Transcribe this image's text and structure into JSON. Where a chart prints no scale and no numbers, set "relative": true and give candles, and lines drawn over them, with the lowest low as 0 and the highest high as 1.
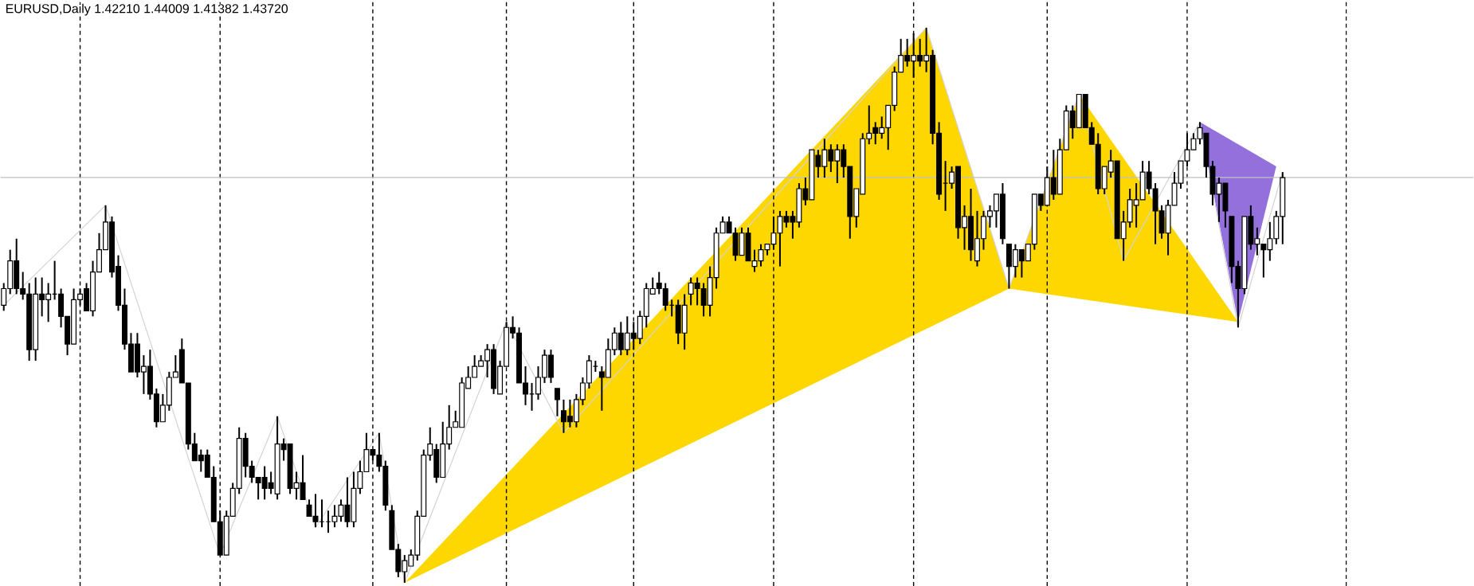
{
  "chart_data": {
    "type": "candlestick",
    "title": "EURUSD,Daily  1.42210 1.44009 1.41382 1.43720",
    "relative": true,
    "categories": [
      null,
      null,
      null,
      null,
      null,
      null,
      null,
      null,
      null,
      null,
      null,
      null,
      null,
      null,
      null,
      null,
      null,
      null,
      null,
      null,
      null,
      null,
      null,
      null,
      null,
      null,
      null,
      null,
      null,
      null,
      null,
      null,
      null,
      null,
      null,
      null,
      null,
      null,
      null,
      null,
      null,
      null,
      null,
      null,
      null,
      null,
      null,
      null,
      null,
      null,
      null,
      null,
      null,
      null,
      null,
      null,
      null,
      null,
      null,
      null,
      null,
      null,
      null,
      null,
      null,
      null,
      null,
      null,
      null,
      null,
      null,
      null,
      null,
      null,
      null,
      null,
      null,
      null,
      null,
      null,
      null,
      null,
      null,
      null,
      null,
      null,
      null,
      null,
      null,
      null,
      null,
      null,
      null,
      null,
      null,
      null,
      null,
      null,
      null,
      null,
      null,
      null,
      null,
      null,
      null,
      null,
      null,
      null,
      null,
      null,
      null,
      null,
      null,
      null,
      null,
      null,
      null,
      null,
      null,
      null,
      null,
      null,
      null,
      null,
      null,
      null,
      null,
      null,
      null,
      null,
      null,
      null,
      null,
      null,
      null,
      null,
      null,
      null,
      null,
      null,
      null,
      null,
      null,
      null,
      null,
      null,
      null,
      null,
      null,
      null,
      null,
      null,
      null,
      null,
      null,
      null,
      null,
      null,
      null,
      null,
      null,
      null,
      null,
      null,
      null,
      null,
      null,
      null,
      null,
      null,
      null,
      null,
      null,
      null,
      null,
      null,
      null,
      null,
      null,
      null,
      null,
      null,
      null,
      null,
      null,
      null,
      null,
      null,
      null,
      null,
      null,
      null,
      null,
      null,
      null,
      null,
      null,
      null,
      null,
      null,
      null,
      null
    ],
    "ohlc": [
      [
        0.5,
        0.54,
        0.49,
        0.53
      ],
      [
        0.53,
        0.6,
        0.52,
        0.58
      ],
      [
        0.58,
        0.62,
        0.52,
        0.53
      ],
      [
        0.53,
        0.56,
        0.51,
        0.52
      ],
      [
        0.52,
        0.54,
        0.4,
        0.42
      ],
      [
        0.42,
        0.55,
        0.4,
        0.52
      ],
      [
        0.52,
        0.55,
        0.48,
        0.51
      ],
      [
        0.51,
        0.54,
        0.47,
        0.52
      ],
      [
        0.52,
        0.58,
        0.51,
        0.52
      ],
      [
        0.52,
        0.53,
        0.46,
        0.48
      ],
      [
        0.48,
        0.48,
        0.41,
        0.43
      ],
      [
        0.43,
        0.53,
        0.43,
        0.51
      ],
      [
        0.51,
        0.53,
        0.5,
        0.52
      ],
      [
        0.53,
        0.54,
        0.49,
        0.49
      ],
      [
        0.49,
        0.58,
        0.48,
        0.56
      ],
      [
        0.56,
        0.63,
        0.56,
        0.6
      ],
      [
        0.6,
        0.68,
        0.6,
        0.65
      ],
      [
        0.65,
        0.66,
        0.55,
        0.56
      ],
      [
        0.57,
        0.59,
        0.49,
        0.5
      ],
      [
        0.5,
        0.53,
        0.42,
        0.43
      ],
      [
        0.43,
        0.45,
        0.38,
        0.38
      ],
      [
        0.43,
        0.45,
        0.37,
        0.38
      ],
      [
        0.38,
        0.41,
        0.34,
        0.39
      ],
      [
        0.39,
        0.42,
        0.33,
        0.34
      ],
      [
        0.34,
        0.35,
        0.28,
        0.29
      ],
      [
        0.29,
        0.34,
        0.29,
        0.32
      ],
      [
        0.32,
        0.38,
        0.31,
        0.37
      ],
      [
        0.37,
        0.41,
        0.37,
        0.38
      ],
      [
        0.42,
        0.44,
        0.36,
        0.36
      ],
      [
        0.36,
        0.36,
        0.24,
        0.25
      ],
      [
        0.25,
        0.27,
        0.22,
        0.22
      ],
      [
        0.23,
        0.24,
        0.2,
        0.22
      ],
      [
        0.23,
        0.24,
        0.19,
        0.19
      ],
      [
        0.19,
        0.21,
        0.11,
        0.11
      ],
      [
        0.11,
        0.13,
        0.05,
        0.05
      ],
      [
        0.05,
        0.13,
        0.05,
        0.12
      ],
      [
        0.12,
        0.18,
        0.12,
        0.17
      ],
      [
        0.17,
        0.28,
        0.16,
        0.26
      ],
      [
        0.26,
        0.27,
        0.19,
        0.21
      ],
      [
        0.21,
        0.22,
        0.18,
        0.19
      ],
      [
        0.19,
        0.19,
        0.15,
        0.18
      ],
      [
        0.19,
        0.21,
        0.15,
        0.17
      ],
      [
        0.18,
        0.2,
        0.16,
        0.17
      ],
      [
        0.16,
        0.3,
        0.15,
        0.25
      ],
      [
        0.25,
        0.26,
        0.22,
        0.24
      ],
      [
        0.25,
        0.25,
        0.16,
        0.17
      ],
      [
        0.17,
        0.2,
        0.15,
        0.18
      ],
      [
        0.18,
        0.23,
        0.15,
        0.15
      ],
      [
        0.14,
        0.15,
        0.12,
        0.12
      ],
      [
        0.12,
        0.16,
        0.1,
        0.11
      ],
      [
        0.11,
        0.15,
        0.1,
        0.11
      ],
      [
        0.11,
        0.13,
        0.09,
        0.11
      ],
      [
        0.11,
        0.14,
        0.1,
        0.12
      ],
      [
        0.12,
        0.15,
        0.11,
        0.14
      ],
      [
        0.14,
        0.19,
        0.1,
        0.11
      ],
      [
        0.11,
        0.2,
        0.1,
        0.17
      ],
      [
        0.17,
        0.22,
        0.16,
        0.2
      ],
      [
        0.2,
        0.27,
        0.2,
        0.24
      ],
      [
        0.24,
        0.24,
        0.22,
        0.23
      ],
      [
        0.23,
        0.27,
        0.2,
        0.21
      ],
      [
        0.21,
        0.22,
        0.13,
        0.14
      ],
      [
        0.13,
        0.14,
        0.06,
        0.06
      ],
      [
        0.06,
        0.07,
        0.01,
        0.02
      ],
      [
        0.02,
        0.05,
        0.0,
        0.04
      ],
      [
        0.03,
        0.06,
        0.03,
        0.05
      ],
      [
        0.05,
        0.13,
        0.04,
        0.12
      ],
      [
        0.12,
        0.24,
        0.12,
        0.23
      ],
      [
        0.23,
        0.28,
        0.22,
        0.25
      ],
      [
        0.24,
        0.25,
        0.18,
        0.19
      ],
      [
        0.19,
        0.29,
        0.19,
        0.25
      ],
      [
        0.25,
        0.32,
        0.24,
        0.28
      ],
      [
        0.28,
        0.31,
        0.28,
        0.29
      ],
      [
        0.28,
        0.37,
        0.28,
        0.36
      ],
      [
        0.35,
        0.39,
        0.35,
        0.37
      ],
      [
        0.37,
        0.41,
        0.37,
        0.39
      ],
      [
        0.39,
        0.41,
        0.39,
        0.4
      ],
      [
        0.4,
        0.43,
        0.37,
        0.42
      ],
      [
        0.42,
        0.43,
        0.34,
        0.35
      ],
      [
        0.34,
        0.4,
        0.34,
        0.39
      ],
      [
        0.39,
        0.47,
        0.39,
        0.46
      ],
      [
        0.46,
        0.48,
        0.44,
        0.45
      ],
      [
        0.45,
        0.46,
        0.36,
        0.36
      ],
      [
        0.36,
        0.39,
        0.32,
        0.34
      ],
      [
        0.34,
        0.36,
        0.31,
        0.34
      ],
      [
        0.34,
        0.39,
        0.33,
        0.37
      ],
      [
        0.37,
        0.42,
        0.36,
        0.41
      ],
      [
        0.41,
        0.42,
        0.36,
        0.37
      ],
      [
        0.35,
        0.35,
        0.3,
        0.33
      ],
      [
        0.31,
        0.33,
        0.27,
        0.29
      ],
      [
        0.3,
        0.33,
        0.28,
        0.29
      ],
      [
        0.29,
        0.34,
        0.28,
        0.33
      ],
      [
        0.33,
        0.37,
        0.32,
        0.36
      ],
      [
        0.36,
        0.41,
        0.35,
        0.4
      ],
      [
        0.39,
        0.4,
        0.38,
        0.39
      ],
      [
        0.38,
        0.39,
        0.31,
        0.37
      ],
      [
        0.37,
        0.44,
        0.37,
        0.42
      ],
      [
        0.42,
        0.46,
        0.41,
        0.45
      ],
      [
        0.45,
        0.47,
        0.41,
        0.42
      ],
      [
        0.42,
        0.48,
        0.41,
        0.45
      ],
      [
        0.45,
        0.47,
        0.42,
        0.44
      ],
      [
        0.44,
        0.49,
        0.43,
        0.48
      ],
      [
        0.48,
        0.54,
        0.46,
        0.53
      ],
      [
        0.52,
        0.55,
        0.52,
        0.53
      ],
      [
        0.54,
        0.56,
        0.52,
        0.53
      ],
      [
        0.53,
        0.54,
        0.49,
        0.5
      ],
      [
        0.5,
        0.51,
        0.48,
        0.5
      ],
      [
        0.5,
        0.51,
        0.43,
        0.45
      ],
      [
        0.45,
        0.52,
        0.42,
        0.5
      ],
      [
        0.52,
        0.55,
        0.5,
        0.54
      ],
      [
        0.54,
        0.55,
        0.5,
        0.53
      ],
      [
        0.53,
        0.54,
        0.48,
        0.5
      ],
      [
        0.5,
        0.57,
        0.48,
        0.55
      ],
      [
        0.55,
        0.64,
        0.53,
        0.63
      ],
      [
        0.63,
        0.66,
        0.63,
        0.65
      ],
      [
        0.65,
        0.66,
        0.63,
        0.63
      ],
      [
        0.63,
        0.64,
        0.58,
        0.59
      ],
      [
        0.59,
        0.64,
        0.59,
        0.63
      ],
      [
        0.63,
        0.64,
        0.58,
        0.58
      ],
      [
        0.57,
        0.6,
        0.56,
        0.58
      ],
      [
        0.58,
        0.61,
        0.57,
        0.6
      ],
      [
        0.6,
        0.61,
        0.59,
        0.61
      ],
      [
        0.61,
        0.66,
        0.6,
        0.63
      ],
      [
        0.63,
        0.67,
        0.57,
        0.66
      ],
      [
        0.66,
        0.67,
        0.64,
        0.65
      ],
      [
        0.66,
        0.67,
        0.62,
        0.65
      ],
      [
        0.65,
        0.72,
        0.64,
        0.71
      ],
      [
        0.71,
        0.73,
        0.68,
        0.69
      ],
      [
        0.69,
        0.78,
        0.69,
        0.78
      ],
      [
        0.77,
        0.78,
        0.73,
        0.75
      ],
      [
        0.75,
        0.8,
        0.73,
        0.78
      ],
      [
        0.78,
        0.79,
        0.74,
        0.76
      ],
      [
        0.76,
        0.79,
        0.72,
        0.78
      ],
      [
        0.78,
        0.79,
        0.73,
        0.75
      ],
      [
        0.75,
        0.75,
        0.62,
        0.66
      ],
      [
        0.66,
        0.71,
        0.64,
        0.71
      ],
      [
        0.7,
        0.81,
        0.7,
        0.8
      ],
      [
        0.8,
        0.86,
        0.79,
        0.81
      ],
      [
        0.82,
        0.83,
        0.79,
        0.81
      ],
      [
        0.81,
        0.84,
        0.8,
        0.82
      ],
      [
        0.82,
        0.86,
        0.78,
        0.86
      ],
      [
        0.86,
        0.93,
        0.85,
        0.92
      ],
      [
        0.92,
        0.98,
        0.92,
        0.95
      ],
      [
        0.95,
        0.98,
        0.93,
        0.94
      ],
      [
        0.94,
        0.99,
        0.91,
        0.95
      ],
      [
        0.95,
        0.98,
        0.93,
        0.94
      ],
      [
        0.94,
        1.0,
        0.92,
        0.95
      ],
      [
        0.95,
        0.96,
        0.79,
        0.81
      ],
      [
        0.81,
        0.83,
        0.69,
        0.7
      ],
      [
        0.72,
        0.76,
        0.67,
        0.72
      ],
      [
        0.72,
        0.75,
        0.71,
        0.74
      ],
      [
        0.75,
        0.75,
        0.62,
        0.64
      ],
      [
        0.64,
        0.68,
        0.6,
        0.66
      ],
      [
        0.66,
        0.71,
        0.58,
        0.6
      ],
      [
        0.58,
        0.67,
        0.57,
        0.62
      ],
      [
        0.62,
        0.67,
        0.6,
        0.66
      ],
      [
        0.66,
        0.68,
        0.64,
        0.67
      ],
      [
        0.67,
        0.7,
        0.64,
        0.7
      ],
      [
        0.7,
        0.72,
        0.61,
        0.62
      ],
      [
        0.61,
        0.61,
        0.53,
        0.57
      ],
      [
        0.57,
        0.61,
        0.55,
        0.6
      ],
      [
        0.6,
        0.6,
        0.55,
        0.58
      ],
      [
        0.58,
        0.61,
        0.58,
        0.61
      ],
      [
        0.61,
        0.7,
        0.6,
        0.7
      ],
      [
        0.7,
        0.7,
        0.67,
        0.68
      ],
      [
        0.68,
        0.75,
        0.68,
        0.73
      ],
      [
        0.73,
        0.78,
        0.69,
        0.7
      ],
      [
        0.7,
        0.8,
        0.7,
        0.78
      ],
      [
        0.78,
        0.86,
        0.78,
        0.85
      ],
      [
        0.85,
        0.86,
        0.8,
        0.82
      ],
      [
        0.82,
        0.88,
        0.82,
        0.88
      ],
      [
        0.88,
        0.88,
        0.82,
        0.82
      ],
      [
        0.82,
        0.83,
        0.79,
        0.79
      ],
      [
        0.79,
        0.81,
        0.7,
        0.71
      ],
      [
        0.71,
        0.75,
        0.7,
        0.75
      ],
      [
        0.74,
        0.78,
        0.73,
        0.76
      ],
      [
        0.76,
        0.76,
        0.62,
        0.62
      ],
      [
        0.62,
        0.67,
        0.58,
        0.65
      ],
      [
        0.65,
        0.71,
        0.64,
        0.69
      ],
      [
        0.68,
        0.72,
        0.64,
        0.69
      ],
      [
        0.69,
        0.76,
        0.69,
        0.74
      ],
      [
        0.74,
        0.76,
        0.7,
        0.71
      ],
      [
        0.71,
        0.72,
        0.61,
        0.67
      ],
      [
        0.67,
        0.68,
        0.62,
        0.63
      ],
      [
        0.63,
        0.69,
        0.59,
        0.68
      ],
      [
        0.68,
        0.74,
        0.68,
        0.72
      ],
      [
        0.72,
        0.76,
        0.71,
        0.76
      ],
      [
        0.76,
        0.81,
        0.75,
        0.78
      ],
      [
        0.78,
        0.81,
        0.78,
        0.8
      ],
      [
        0.8,
        0.83,
        0.79,
        0.82
      ],
      [
        0.81,
        0.81,
        0.73,
        0.75
      ],
      [
        0.75,
        0.76,
        0.68,
        0.7
      ],
      [
        0.7,
        0.73,
        0.65,
        0.72
      ],
      [
        0.72,
        0.72,
        0.64,
        0.67
      ],
      [
        0.66,
        0.66,
        0.54,
        0.57
      ],
      [
        0.57,
        0.58,
        0.46,
        0.53
      ],
      [
        0.53,
        0.66,
        0.52,
        0.66
      ],
      [
        0.66,
        0.68,
        0.6,
        0.61
      ],
      [
        0.61,
        0.64,
        0.59,
        0.62
      ],
      [
        0.61,
        0.61,
        0.55,
        0.6
      ],
      [
        0.6,
        0.65,
        0.58,
        0.62
      ],
      [
        0.62,
        0.67,
        0.61,
        0.66
      ],
      [
        0.66,
        0.74,
        0.61,
        0.73
      ]
    ],
    "series": [
      {
        "type": "area",
        "color": "#ffd700",
        "values": [
          null,
          null,
          null,
          null,
          null,
          null,
          null,
          null,
          null,
          null,
          null,
          null,
          null,
          null,
          null,
          null,
          null,
          null,
          null,
          null,
          null,
          null,
          null,
          null,
          null,
          null,
          null,
          null,
          null,
          null,
          null,
          null,
          null,
          null,
          null,
          null,
          null,
          null,
          null,
          null,
          null,
          null,
          null,
          null,
          null,
          null,
          null,
          null,
          null,
          null,
          null,
          null,
          null,
          null,
          null,
          null,
          null,
          null,
          null,
          null,
          null,
          null,
          null,
          0.0,
          null,
          null,
          null,
          null,
          null,
          null,
          null,
          null,
          null,
          null,
          null,
          null,
          null,
          null,
          null,
          null,
          null,
          null,
          null,
          null,
          null,
          null,
          null,
          null,
          null,
          null,
          null,
          null,
          null,
          null,
          null,
          null,
          null,
          null,
          null,
          null,
          null,
          null,
          null,
          null,
          null,
          null,
          null,
          null,
          null,
          null,
          null,
          null,
          null,
          null,
          null,
          null,
          null,
          null,
          null,
          null,
          null,
          null,
          null,
          null,
          null,
          null,
          null,
          null,
          null,
          null,
          null,
          null,
          null,
          null,
          null,
          null,
          null,
          null,
          null,
          null,
          null,
          null,
          null,
          null,
          null,
          1.0,
          null,
          null,
          null,
          null,
          null,
          null,
          null,
          null,
          null,
          null,
          null,
          null,
          0.53,
          null,
          null,
          null,
          null,
          null,
          null,
          null,
          null,
          null,
          null,
          null,
          null,
          null,
          null,
          null,
          null,
          null,
          null,
          null,
          null,
          null,
          null,
          null,
          null,
          null,
          null,
          null,
          null,
          null,
          null,
          null,
          null,
          null,
          null,
          null,
          null,
          null,
          null,
          null,
          null,
          null,
          null,
          null
        ]
      },
      {
        "type": "area",
        "color": "#ffd700",
        "values": [
          null,
          null,
          null,
          null,
          null,
          null,
          null,
          null,
          null,
          null,
          null,
          null,
          null,
          null,
          null,
          null,
          null,
          null,
          null,
          null,
          null,
          null,
          null,
          null,
          null,
          null,
          null,
          null,
          null,
          null,
          null,
          null,
          null,
          null,
          null,
          null,
          null,
          null,
          null,
          null,
          null,
          null,
          null,
          null,
          null,
          null,
          null,
          null,
          null,
          null,
          null,
          null,
          null,
          null,
          null,
          null,
          null,
          null,
          null,
          null,
          null,
          null,
          null,
          null,
          null,
          null,
          null,
          null,
          null,
          null,
          null,
          null,
          null,
          null,
          null,
          null,
          null,
          null,
          null,
          null,
          null,
          null,
          null,
          null,
          null,
          null,
          null,
          null,
          null,
          null,
          null,
          null,
          null,
          null,
          null,
          null,
          null,
          null,
          null,
          null,
          null,
          null,
          null,
          null,
          null,
          null,
          null,
          null,
          null,
          null,
          null,
          null,
          null,
          null,
          null,
          null,
          null,
          null,
          null,
          null,
          null,
          null,
          null,
          null,
          null,
          null,
          null,
          null,
          null,
          null,
          null,
          null,
          null,
          null,
          null,
          null,
          null,
          null,
          null,
          null,
          null,
          null,
          null,
          null,
          null,
          null,
          null,
          null,
          null,
          null,
          null,
          null,
          null,
          null,
          null,
          null,
          null,
          null,
          0.53,
          null,
          null,
          null,
          null,
          null,
          null,
          null,
          null,
          null,
          null,
          0.88,
          null,
          null,
          null,
          null,
          null,
          null,
          null,
          null,
          null,
          null,
          null,
          null,
          null,
          null,
          null,
          null,
          null,
          null,
          null,
          null,
          null,
          null,
          null,
          null,
          0.47,
          null,
          null,
          null,
          null,
          null,
          null,
          null
        ]
      },
      {
        "type": "area",
        "color": "#9370db",
        "values": [
          null,
          null,
          null,
          null,
          null,
          null,
          null,
          null,
          null,
          null,
          null,
          null,
          null,
          null,
          null,
          null,
          null,
          null,
          null,
          null,
          null,
          null,
          null,
          null,
          null,
          null,
          null,
          null,
          null,
          null,
          null,
          null,
          null,
          null,
          null,
          null,
          null,
          null,
          null,
          null,
          null,
          null,
          null,
          null,
          null,
          null,
          null,
          null,
          null,
          null,
          null,
          null,
          null,
          null,
          null,
          null,
          null,
          null,
          null,
          null,
          null,
          null,
          null,
          null,
          null,
          null,
          null,
          null,
          null,
          null,
          null,
          null,
          null,
          null,
          null,
          null,
          null,
          null,
          null,
          null,
          null,
          null,
          null,
          null,
          null,
          null,
          null,
          null,
          null,
          null,
          null,
          null,
          null,
          null,
          null,
          null,
          null,
          null,
          null,
          null,
          null,
          null,
          null,
          null,
          null,
          null,
          null,
          null,
          null,
          null,
          null,
          null,
          null,
          null,
          null,
          null,
          null,
          null,
          null,
          null,
          null,
          null,
          null,
          null,
          null,
          null,
          null,
          null,
          null,
          null,
          null,
          null,
          null,
          null,
          null,
          null,
          null,
          null,
          null,
          null,
          null,
          null,
          null,
          null,
          null,
          null,
          null,
          null,
          null,
          null,
          null,
          null,
          null,
          null,
          null,
          null,
          null,
          null,
          null,
          null,
          null,
          null,
          null,
          null,
          null,
          null,
          null,
          null,
          null,
          null,
          null,
          null,
          null,
          null,
          null,
          null,
          null,
          null,
          null,
          null,
          null,
          null,
          null,
          null,
          null,
          null,
          null,
          null,
          0.83,
          null,
          null,
          null,
          null,
          null,
          0.47,
          null,
          null,
          null,
          null,
          null,
          0.75,
          null
        ]
      },
      {
        "type": "line",
        "color": "#d3d3d3",
        "values": [
          0.5,
          null,
          null,
          null,
          null,
          null,
          null,
          null,
          null,
          null,
          null,
          null,
          null,
          null,
          null,
          null,
          0.68,
          null,
          null,
          null,
          null,
          null,
          null,
          null,
          null,
          null,
          null,
          null,
          null,
          null,
          null,
          null,
          null,
          null,
          0.05,
          null,
          null,
          null,
          null,
          null,
          null,
          null,
          null,
          0.3,
          null,
          null,
          null,
          null,
          null,
          0.1,
          null,
          null,
          null,
          null,
          null,
          null,
          null,
          null,
          null,
          0.27,
          null,
          null,
          null,
          0.0,
          null,
          null,
          null,
          null,
          null,
          null,
          null,
          null,
          null,
          null,
          null,
          null,
          null,
          null,
          null,
          0.47,
          null,
          null,
          null,
          null,
          null,
          null,
          null,
          null,
          0.27,
          null,
          null,
          null,
          null,
          null,
          null,
          null,
          null,
          null,
          null,
          null,
          null,
          null,
          null,
          null,
          null,
          null,
          null,
          null,
          null,
          null,
          null,
          null,
          null,
          null,
          null,
          null,
          null,
          null,
          null,
          null,
          null,
          null,
          null,
          null,
          null,
          null,
          null,
          null,
          null,
          null,
          null,
          null,
          null,
          null,
          null,
          null,
          null,
          null,
          null,
          null,
          null,
          null,
          null,
          null,
          null,
          1.0,
          null,
          null,
          null,
          null,
          null,
          null,
          null,
          null,
          null,
          null,
          null,
          null,
          0.53,
          null,
          null,
          null,
          null,
          null,
          null,
          null,
          null,
          null,
          null,
          0.88,
          null,
          null,
          null,
          null,
          null,
          null,
          0.58,
          null,
          null,
          null,
          null,
          null,
          null,
          null,
          null,
          null,
          null,
          null,
          0.83,
          null,
          null,
          null,
          null,
          null,
          0.46,
          null,
          null,
          null,
          null,
          null,
          null,
          0.74
        ]
      }
    ],
    "ref_lines": [
      {
        "axis": "y",
        "value": 0.73,
        "color": "#c0c0c0",
        "line_style": "solid"
      }
    ]
  }
}
